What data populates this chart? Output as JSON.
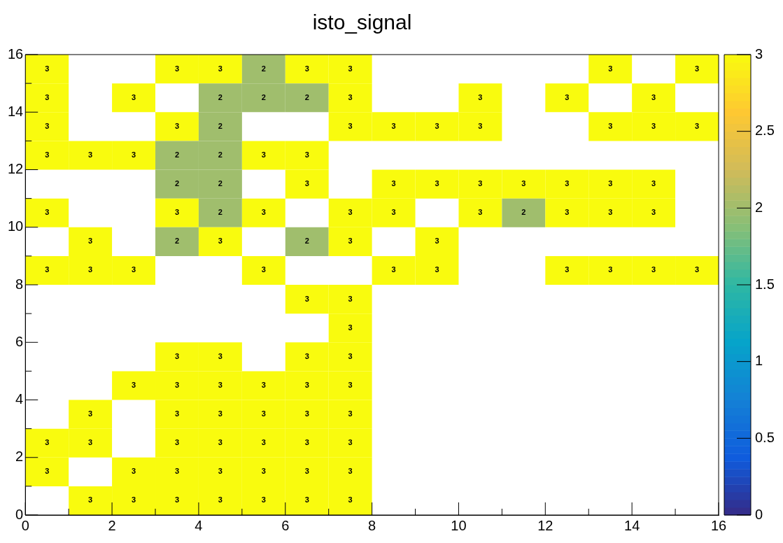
{
  "chart_data": {
    "type": "heatmap",
    "title": "isto_signal",
    "x": [
      0.5,
      1.5,
      2.5,
      3.5,
      4.5,
      5.5,
      6.5,
      7.5,
      8.5,
      9.5,
      10.5,
      11.5,
      12.5,
      13.5,
      14.5,
      15.5
    ],
    "y": [
      15.5,
      14.5,
      13.5,
      12.5,
      11.5,
      10.5,
      9.5,
      8.5,
      7.5,
      6.5,
      5.5,
      4.5,
      3.5,
      2.5,
      1.5,
      0.5
    ],
    "xlim": [
      0,
      16
    ],
    "xticks": [
      0,
      {
        "value": 1,
        "label": null
      },
      2,
      {
        "value": 3,
        "label": null
      },
      4,
      {
        "value": 5,
        "label": null
      },
      6,
      {
        "value": 7,
        "label": null
      },
      8,
      {
        "value": 9,
        "label": null
      },
      10,
      {
        "value": 11,
        "label": null
      },
      12,
      {
        "value": 13,
        "label": null
      },
      14,
      {
        "value": 15,
        "label": null
      },
      16
    ],
    "ylim": [
      0,
      16
    ],
    "yticks": [
      0,
      {
        "value": 1,
        "label": null
      },
      2,
      {
        "value": 3,
        "label": null
      },
      4,
      {
        "value": 5,
        "label": null
      },
      6,
      {
        "value": 7,
        "label": null
      },
      8,
      {
        "value": 9,
        "label": null
      },
      10,
      {
        "value": 11,
        "label": null
      },
      12,
      {
        "value": 13,
        "label": null
      },
      14,
      {
        "value": 15,
        "label": null
      },
      16
    ],
    "clim": [
      0,
      3
    ],
    "cticks": [
      0,
      0.5,
      1,
      1.5,
      2,
      2.5,
      3
    ],
    "data_labels": true,
    "grid": false,
    "legend": false,
    "cells": [
      [
        3,
        null,
        null,
        3,
        3,
        2,
        3,
        3,
        null,
        null,
        null,
        null,
        null,
        3,
        null,
        3
      ],
      [
        3,
        null,
        3,
        null,
        2,
        2,
        2,
        3,
        null,
        null,
        3,
        null,
        3,
        null,
        3,
        null
      ],
      [
        3,
        null,
        null,
        3,
        2,
        null,
        null,
        3,
        3,
        3,
        3,
        null,
        null,
        3,
        3,
        3
      ],
      [
        3,
        3,
        3,
        2,
        2,
        3,
        3,
        null,
        null,
        null,
        null,
        null,
        null,
        null,
        null,
        null
      ],
      [
        null,
        null,
        null,
        2,
        2,
        null,
        3,
        null,
        3,
        3,
        3,
        3,
        3,
        3,
        3,
        null
      ],
      [
        3,
        null,
        null,
        3,
        2,
        3,
        null,
        3,
        3,
        null,
        3,
        2,
        3,
        3,
        3,
        null
      ],
      [
        null,
        3,
        null,
        2,
        3,
        null,
        2,
        3,
        null,
        3,
        null,
        null,
        null,
        null,
        null,
        null
      ],
      [
        3,
        3,
        3,
        null,
        null,
        3,
        null,
        null,
        3,
        3,
        null,
        null,
        3,
        3,
        3,
        3
      ],
      [
        null,
        null,
        null,
        null,
        null,
        null,
        3,
        3,
        null,
        null,
        null,
        null,
        null,
        null,
        null,
        null
      ],
      [
        null,
        null,
        null,
        null,
        null,
        null,
        null,
        3,
        null,
        null,
        null,
        null,
        null,
        null,
        null,
        null
      ],
      [
        null,
        null,
        null,
        3,
        3,
        null,
        3,
        3,
        null,
        null,
        null,
        null,
        null,
        null,
        null,
        null
      ],
      [
        null,
        null,
        3,
        3,
        3,
        3,
        3,
        3,
        null,
        null,
        null,
        null,
        null,
        null,
        null,
        null
      ],
      [
        null,
        3,
        null,
        3,
        3,
        3,
        3,
        3,
        null,
        null,
        null,
        null,
        null,
        null,
        null,
        null
      ],
      [
        3,
        3,
        null,
        3,
        3,
        3,
        3,
        3,
        null,
        null,
        null,
        null,
        null,
        null,
        null,
        null
      ],
      [
        3,
        null,
        3,
        3,
        3,
        3,
        3,
        3,
        null,
        null,
        null,
        null,
        null,
        null,
        null,
        null
      ],
      [
        null,
        3,
        3,
        3,
        3,
        3,
        3,
        3,
        null,
        null,
        null,
        null,
        null,
        null,
        null,
        null
      ]
    ]
  }
}
